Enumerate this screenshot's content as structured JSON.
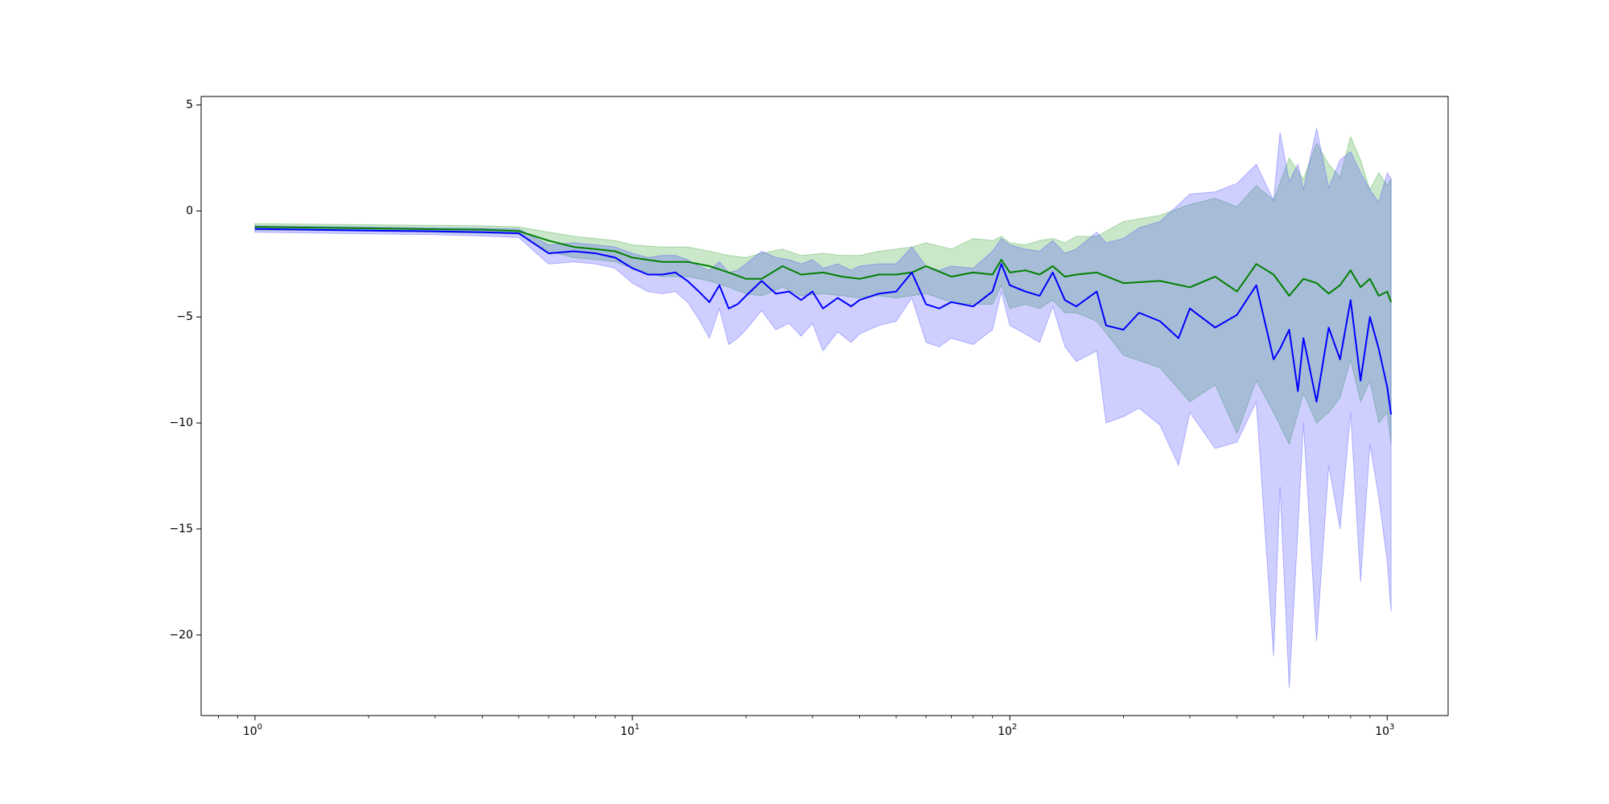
{
  "chart_data": {
    "type": "line",
    "title": "",
    "xlabel": "",
    "ylabel": "",
    "xscale": "log",
    "xlim": [
      0.72,
      1450
    ],
    "ylim": [
      -23.8,
      5.4
    ],
    "grid": false,
    "legend": "none",
    "x_ticks": [
      {
        "value": 1,
        "label": "10",
        "exp": "0"
      },
      {
        "value": 10,
        "label": "10",
        "exp": "1"
      },
      {
        "value": 100,
        "label": "10",
        "exp": "2"
      },
      {
        "value": 1000,
        "label": "10",
        "exp": "3"
      }
    ],
    "y_ticks": [
      {
        "value": 5,
        "label": "5"
      },
      {
        "value": 0,
        "label": "0"
      },
      {
        "value": -5,
        "label": "−5"
      },
      {
        "value": -10,
        "label": "−10"
      },
      {
        "value": -15,
        "label": "−15"
      },
      {
        "value": -20,
        "label": "−20"
      }
    ],
    "series": [
      {
        "color": "#008000",
        "band_color": "#2ca02c",
        "x": [
          1,
          2,
          3,
          4,
          5,
          6,
          7,
          8,
          9,
          10,
          12,
          14,
          16,
          18,
          20,
          22,
          25,
          28,
          32,
          36,
          40,
          45,
          50,
          55,
          60,
          70,
          80,
          90,
          95,
          100,
          110,
          120,
          130,
          140,
          150,
          170,
          200,
          250,
          300,
          350,
          400,
          450,
          500,
          550,
          600,
          650,
          700,
          750,
          800,
          850,
          900,
          950,
          1000,
          1024
        ],
        "y": [
          -0.75,
          -0.82,
          -0.86,
          -0.88,
          -0.95,
          -1.4,
          -1.7,
          -1.8,
          -1.9,
          -2.2,
          -2.4,
          -2.4,
          -2.6,
          -2.9,
          -3.2,
          -3.2,
          -2.6,
          -3.0,
          -2.9,
          -3.1,
          -3.2,
          -3.0,
          -3.0,
          -2.9,
          -2.6,
          -3.1,
          -2.9,
          -3.0,
          -2.3,
          -2.9,
          -2.8,
          -3.0,
          -2.6,
          -3.1,
          -3.0,
          -2.9,
          -3.4,
          -3.3,
          -3.6,
          -3.1,
          -3.8,
          -2.5,
          -3.0,
          -4.0,
          -3.2,
          -3.4,
          -3.9,
          -3.5,
          -2.8,
          -3.6,
          -3.2,
          -4.0,
          -3.8,
          -4.3
        ],
        "upper": [
          -0.6,
          -0.65,
          -0.68,
          -0.7,
          -0.75,
          -1.0,
          -1.2,
          -1.3,
          -1.4,
          -1.6,
          -1.7,
          -1.7,
          -1.9,
          -2.1,
          -2.2,
          -2.0,
          -1.8,
          -2.1,
          -2.0,
          -2.1,
          -2.1,
          -1.9,
          -1.8,
          -1.7,
          -1.5,
          -1.8,
          -1.3,
          -1.4,
          -1.2,
          -1.5,
          -1.6,
          -1.4,
          -1.3,
          -1.5,
          -1.2,
          -1.2,
          -0.5,
          -0.2,
          0.3,
          0.6,
          0.2,
          1.2,
          0.5,
          2.5,
          1.5,
          3.2,
          2.2,
          1.6,
          3.5,
          2.4,
          1.0,
          1.8,
          1.2,
          1.5
        ],
        "lower": [
          -0.9,
          -0.95,
          -1.0,
          -1.05,
          -1.1,
          -1.9,
          -2.2,
          -2.3,
          -2.4,
          -2.7,
          -3.1,
          -3.1,
          -3.3,
          -3.6,
          -3.9,
          -4.0,
          -3.6,
          -4.0,
          -3.9,
          -4.0,
          -4.1,
          -4.0,
          -4.1,
          -4.0,
          -3.9,
          -4.3,
          -4.4,
          -4.4,
          -3.5,
          -4.6,
          -4.4,
          -4.6,
          -4.2,
          -4.8,
          -4.8,
          -5.2,
          -6.8,
          -7.4,
          -9.0,
          -8.2,
          -10.5,
          -8.0,
          -9.5,
          -11.0,
          -8.6,
          -10.0,
          -9.5,
          -8.8,
          -7.0,
          -9.0,
          -8.0,
          -10.0,
          -9.5,
          -11.0
        ]
      },
      {
        "color": "#0000ff",
        "band_color": "#4040ff",
        "x": [
          1,
          2,
          3,
          4,
          5,
          6,
          7,
          8,
          9,
          10,
          11,
          12,
          13,
          14,
          15,
          16,
          17,
          18,
          19,
          20,
          22,
          24,
          26,
          28,
          30,
          32,
          35,
          38,
          40,
          45,
          50,
          55,
          60,
          65,
          70,
          80,
          90,
          95,
          100,
          110,
          120,
          130,
          140,
          150,
          170,
          180,
          200,
          220,
          250,
          280,
          300,
          350,
          400,
          450,
          500,
          520,
          550,
          580,
          600,
          650,
          700,
          750,
          800,
          850,
          900,
          950,
          1000,
          1024
        ],
        "y": [
          -0.85,
          -0.92,
          -0.96,
          -1.0,
          -1.05,
          -2.0,
          -1.9,
          -2.0,
          -2.2,
          -2.7,
          -3.0,
          -3.0,
          -2.9,
          -3.3,
          -3.8,
          -4.3,
          -3.5,
          -4.6,
          -4.4,
          -4.0,
          -3.3,
          -3.9,
          -3.8,
          -4.2,
          -3.8,
          -4.6,
          -4.1,
          -4.5,
          -4.2,
          -3.9,
          -3.8,
          -2.9,
          -4.4,
          -4.6,
          -4.3,
          -4.5,
          -3.8,
          -2.5,
          -3.5,
          -3.8,
          -4.0,
          -2.9,
          -4.2,
          -4.5,
          -3.8,
          -5.4,
          -5.6,
          -4.8,
          -5.2,
          -6.0,
          -4.6,
          -5.5,
          -4.9,
          -3.5,
          -7.0,
          -6.5,
          -5.6,
          -8.5,
          -6.0,
          -9.0,
          -5.5,
          -7.0,
          -4.2,
          -8.0,
          -5.0,
          -6.5,
          -8.3,
          -9.6
        ],
        "upper": [
          -0.7,
          -0.76,
          -0.8,
          -0.82,
          -0.85,
          -1.6,
          -1.5,
          -1.6,
          -1.7,
          -2.0,
          -2.2,
          -2.1,
          -2.1,
          -2.3,
          -2.6,
          -2.8,
          -2.4,
          -2.9,
          -2.8,
          -2.5,
          -1.9,
          -2.2,
          -2.3,
          -2.5,
          -2.3,
          -2.7,
          -2.5,
          -2.8,
          -2.6,
          -2.5,
          -2.5,
          -1.7,
          -2.6,
          -2.8,
          -2.6,
          -2.7,
          -1.9,
          -1.3,
          -1.6,
          -1.8,
          -1.9,
          -1.4,
          -2.0,
          -1.8,
          -1.0,
          -1.5,
          -1.3,
          -0.8,
          -0.5,
          0.3,
          0.8,
          0.9,
          1.3,
          2.2,
          0.5,
          3.7,
          1.4,
          2.2,
          1.0,
          3.9,
          1.1,
          2.4,
          2.8,
          1.8,
          1.0,
          0.4,
          1.8,
          1.5
        ],
        "lower": [
          -1.0,
          -1.08,
          -1.12,
          -1.18,
          -1.25,
          -2.5,
          -2.4,
          -2.5,
          -2.7,
          -3.4,
          -3.8,
          -3.9,
          -3.8,
          -4.3,
          -5.1,
          -6.0,
          -4.6,
          -6.3,
          -6.0,
          -5.6,
          -4.7,
          -5.6,
          -5.3,
          -5.9,
          -5.3,
          -6.6,
          -5.7,
          -6.2,
          -5.8,
          -5.4,
          -5.2,
          -4.1,
          -6.2,
          -6.4,
          -6.0,
          -6.3,
          -5.6,
          -3.8,
          -5.4,
          -5.8,
          -6.2,
          -4.5,
          -6.4,
          -7.1,
          -6.6,
          -10.0,
          -9.7,
          -9.3,
          -10.1,
          -12.0,
          -9.5,
          -11.2,
          -10.9,
          -9.0,
          -21.0,
          -13.0,
          -22.5,
          -15.0,
          -10.0,
          -20.3,
          -12.0,
          -15.0,
          -9.5,
          -17.5,
          -11.0,
          -13.5,
          -16.5,
          -18.9
        ]
      }
    ]
  }
}
